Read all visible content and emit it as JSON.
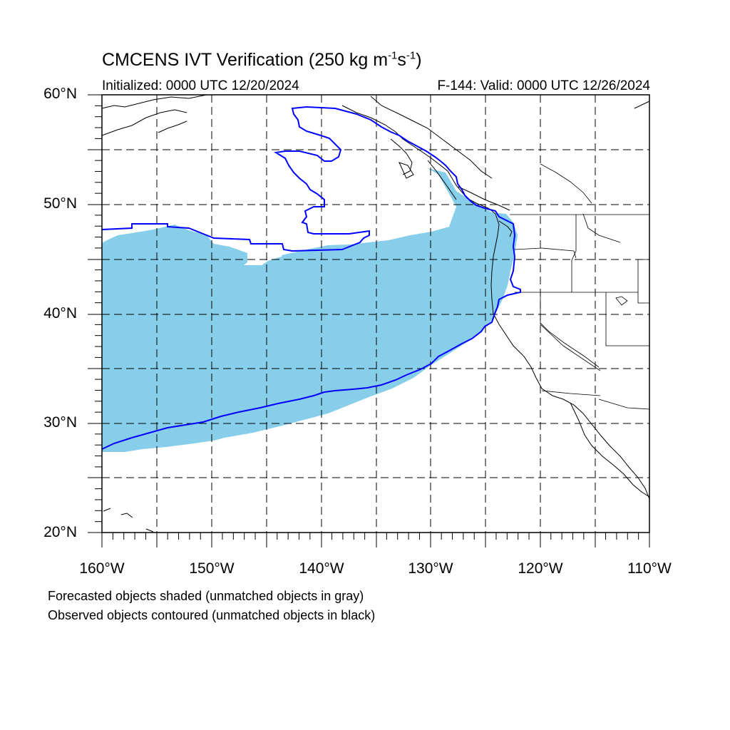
{
  "title": {
    "prefix": "CMCENS IVT Verification (250 kg m",
    "exp1": "-1",
    "mid": "s",
    "exp2": "-1",
    "suffix": ")"
  },
  "subtitle_left": "Initialized: 0000 UTC 12/20/2024",
  "subtitle_right": "F-144: Valid: 0000 UTC 12/26/2024",
  "lat_labels": [
    "60°N",
    "50°N",
    "40°N",
    "30°N",
    "20°N"
  ],
  "lon_labels": [
    "160°W",
    "150°W",
    "140°W",
    "130°W",
    "120°W",
    "110°W"
  ],
  "notes": [
    "Forecasted objects shaded (unmatched objects in gray)",
    "Observed objects contoured (unmatched objects in black)"
  ],
  "colors": {
    "forecast_fill": "#87ceeb",
    "observed_contour": "#0000ff",
    "grid": "#000000",
    "coast": "#000000"
  },
  "map": {
    "lon_range": [
      -160,
      -110
    ],
    "lat_range": [
      20,
      60
    ],
    "grid_interval_deg": 5
  }
}
